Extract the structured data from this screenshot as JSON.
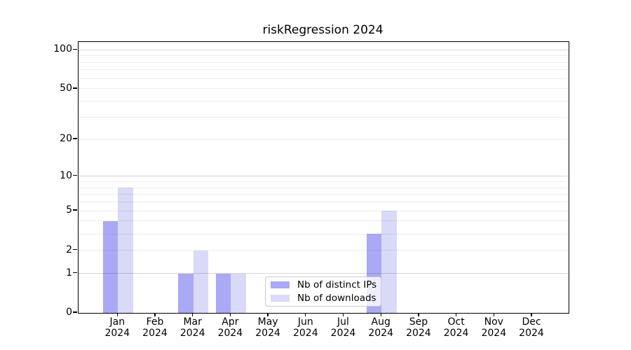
{
  "title": "riskRegression 2024",
  "legend": {
    "items": [
      {
        "label": "Nb of distinct IPs",
        "color": "#a9a9f5"
      },
      {
        "label": "Nb of downloads",
        "color": "#d9d9f8"
      }
    ]
  },
  "chart_data": {
    "type": "bar",
    "title": "riskRegression 2024",
    "categories": [
      "Jan 2024",
      "Feb 2024",
      "Mar 2024",
      "Apr 2024",
      "May 2024",
      "Jun 2024",
      "Jul 2024",
      "Aug 2024",
      "Sep 2024",
      "Oct 2024",
      "Nov 2024",
      "Dec 2024"
    ],
    "series": [
      {
        "name": "Nb of distinct IPs",
        "color": "#a9a9f5",
        "values": [
          4,
          0,
          1,
          1,
          0,
          0,
          0,
          3,
          0,
          0,
          0,
          0
        ]
      },
      {
        "name": "Nb of downloads",
        "color": "#d9d9f8",
        "values": [
          8,
          0,
          2,
          1,
          0,
          0,
          0,
          5,
          0,
          0,
          0,
          0
        ]
      }
    ],
    "xlabel": "",
    "ylabel": "",
    "yscale": "log1p",
    "ylim": [
      0,
      115
    ],
    "y_tick_values": [
      100,
      50,
      20,
      10,
      5,
      2,
      1,
      0
    ],
    "y_tick_labels": [
      "100",
      "50",
      "20",
      "10",
      "5",
      "2",
      "1",
      "0"
    ],
    "y_major_grid": [
      1,
      10,
      100
    ],
    "y_minor_grid": [
      2,
      3,
      4,
      5,
      6,
      7,
      8,
      9,
      20,
      30,
      40,
      50,
      60,
      70,
      80,
      90
    ],
    "grid": "on",
    "legend_position": "lower center",
    "spine_color": "#000000",
    "grid_major_color": "#d6d6d6",
    "grid_minor_color": "#ededed"
  }
}
